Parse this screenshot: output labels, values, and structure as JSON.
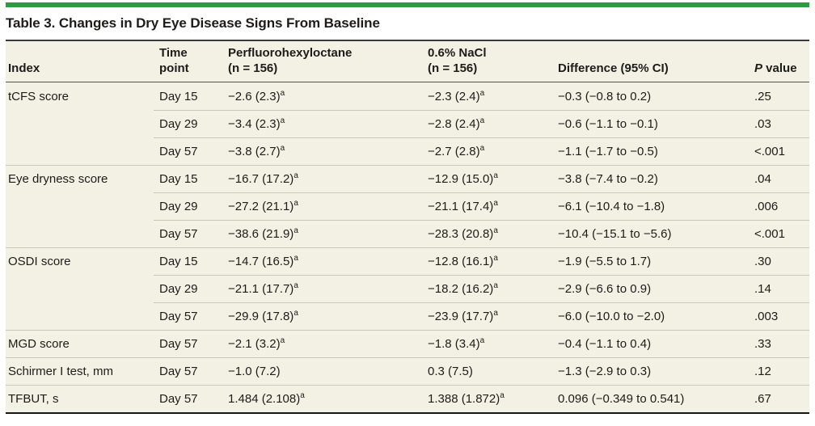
{
  "colors": {
    "accent_green": "#2E9B3F",
    "table_background": "#F3F0E4",
    "rule_light": "#C9C6B9",
    "rule_header": "#55544E",
    "rule_dark": "#161616",
    "rule_title": "#3A3A38",
    "text": "#1D1C1A"
  },
  "title": "Table 3. Changes in Dry Eye Disease Signs From Baseline",
  "table": {
    "header": {
      "index": "Index",
      "time_line1": "Time",
      "time_line2": "point",
      "pfho_line1": "Perfluorohexyloctane",
      "pfho_line2": "(n = 156)",
      "nacl_line1": "0.6% NaCl",
      "nacl_line2": "(n = 156)",
      "difference": "Difference (95% CI)",
      "p_italic": "P",
      "p_rest": " value"
    },
    "rows": [
      {
        "index": "tCFS score",
        "time": "Day 15",
        "pfho": "−2.6 (2.3)",
        "pfho_sup": "a",
        "nacl": "−2.3 (2.4)",
        "nacl_sup": "a",
        "diff": "−0.3 (−0.8 to 0.2)",
        "p": ".25",
        "sep": "none"
      },
      {
        "index": "",
        "time": "Day 29",
        "pfho": "−3.4 (2.3)",
        "pfho_sup": "a",
        "nacl": "−2.8 (2.4)",
        "nacl_sup": "a",
        "diff": "−0.6 (−1.1 to −0.1)",
        "p": ".03",
        "sep": "partial"
      },
      {
        "index": "",
        "time": "Day 57",
        "pfho": "−3.8 (2.7)",
        "pfho_sup": "a",
        "nacl": "−2.7 (2.8)",
        "nacl_sup": "a",
        "diff": "−1.1 (−1.7 to −0.5)",
        "p": "<.001",
        "sep": "partial"
      },
      {
        "index": "Eye dryness score",
        "time": "Day 15",
        "pfho": "−16.7 (17.2)",
        "pfho_sup": "a",
        "nacl": "−12.9 (15.0)",
        "nacl_sup": "a",
        "diff": "−3.8 (−7.4 to −0.2)",
        "p": ".04",
        "sep": "full"
      },
      {
        "index": "",
        "time": "Day 29",
        "pfho": "−27.2 (21.1)",
        "pfho_sup": "a",
        "nacl": "−21.1 (17.4)",
        "nacl_sup": "a",
        "diff": "−6.1 (−10.4 to −1.8)",
        "p": ".006",
        "sep": "partial"
      },
      {
        "index": "",
        "time": "Day 57",
        "pfho": "−38.6 (21.9)",
        "pfho_sup": "a",
        "nacl": "−28.3 (20.8)",
        "nacl_sup": "a",
        "diff": "−10.4 (−15.1 to −5.6)",
        "p": "<.001",
        "sep": "partial"
      },
      {
        "index": "OSDI score",
        "time": "Day 15",
        "pfho": "−14.7 (16.5)",
        "pfho_sup": "a",
        "nacl": "−12.8 (16.1)",
        "nacl_sup": "a",
        "diff": "−1.9 (−5.5 to 1.7)",
        "p": ".30",
        "sep": "full"
      },
      {
        "index": "",
        "time": "Day 29",
        "pfho": "−21.1 (17.7)",
        "pfho_sup": "a",
        "nacl": "−18.2 (16.2)",
        "nacl_sup": "a",
        "diff": "−2.9 (−6.6 to 0.9)",
        "p": ".14",
        "sep": "partial"
      },
      {
        "index": "",
        "time": "Day 57",
        "pfho": "−29.9 (17.8)",
        "pfho_sup": "a",
        "nacl": "−23.9 (17.7)",
        "nacl_sup": "a",
        "diff": "−6.0 (−10.0 to −2.0)",
        "p": ".003",
        "sep": "partial"
      },
      {
        "index": "MGD score",
        "time": "Day 57",
        "pfho": "−2.1 (3.2)",
        "pfho_sup": "a",
        "nacl": "−1.8 (3.4)",
        "nacl_sup": "a",
        "diff": "−0.4 (−1.1 to 0.4)",
        "p": ".33",
        "sep": "full"
      },
      {
        "index": "Schirmer I test, mm",
        "time": "Day 57",
        "pfho": "−1.0 (7.2)",
        "pfho_sup": "",
        "nacl": "0.3 (7.5)",
        "nacl_sup": "",
        "diff": "−1.3 (−2.9 to 0.3)",
        "p": ".12",
        "sep": "full"
      },
      {
        "index": "TFBUT, s",
        "time": "Day 57",
        "pfho": "1.484 (2.108)",
        "pfho_sup": "a",
        "nacl": "1.388 (1.872)",
        "nacl_sup": "a",
        "diff": "0.096 (−0.349 to 0.541)",
        "p": ".67",
        "sep": "full"
      }
    ]
  }
}
